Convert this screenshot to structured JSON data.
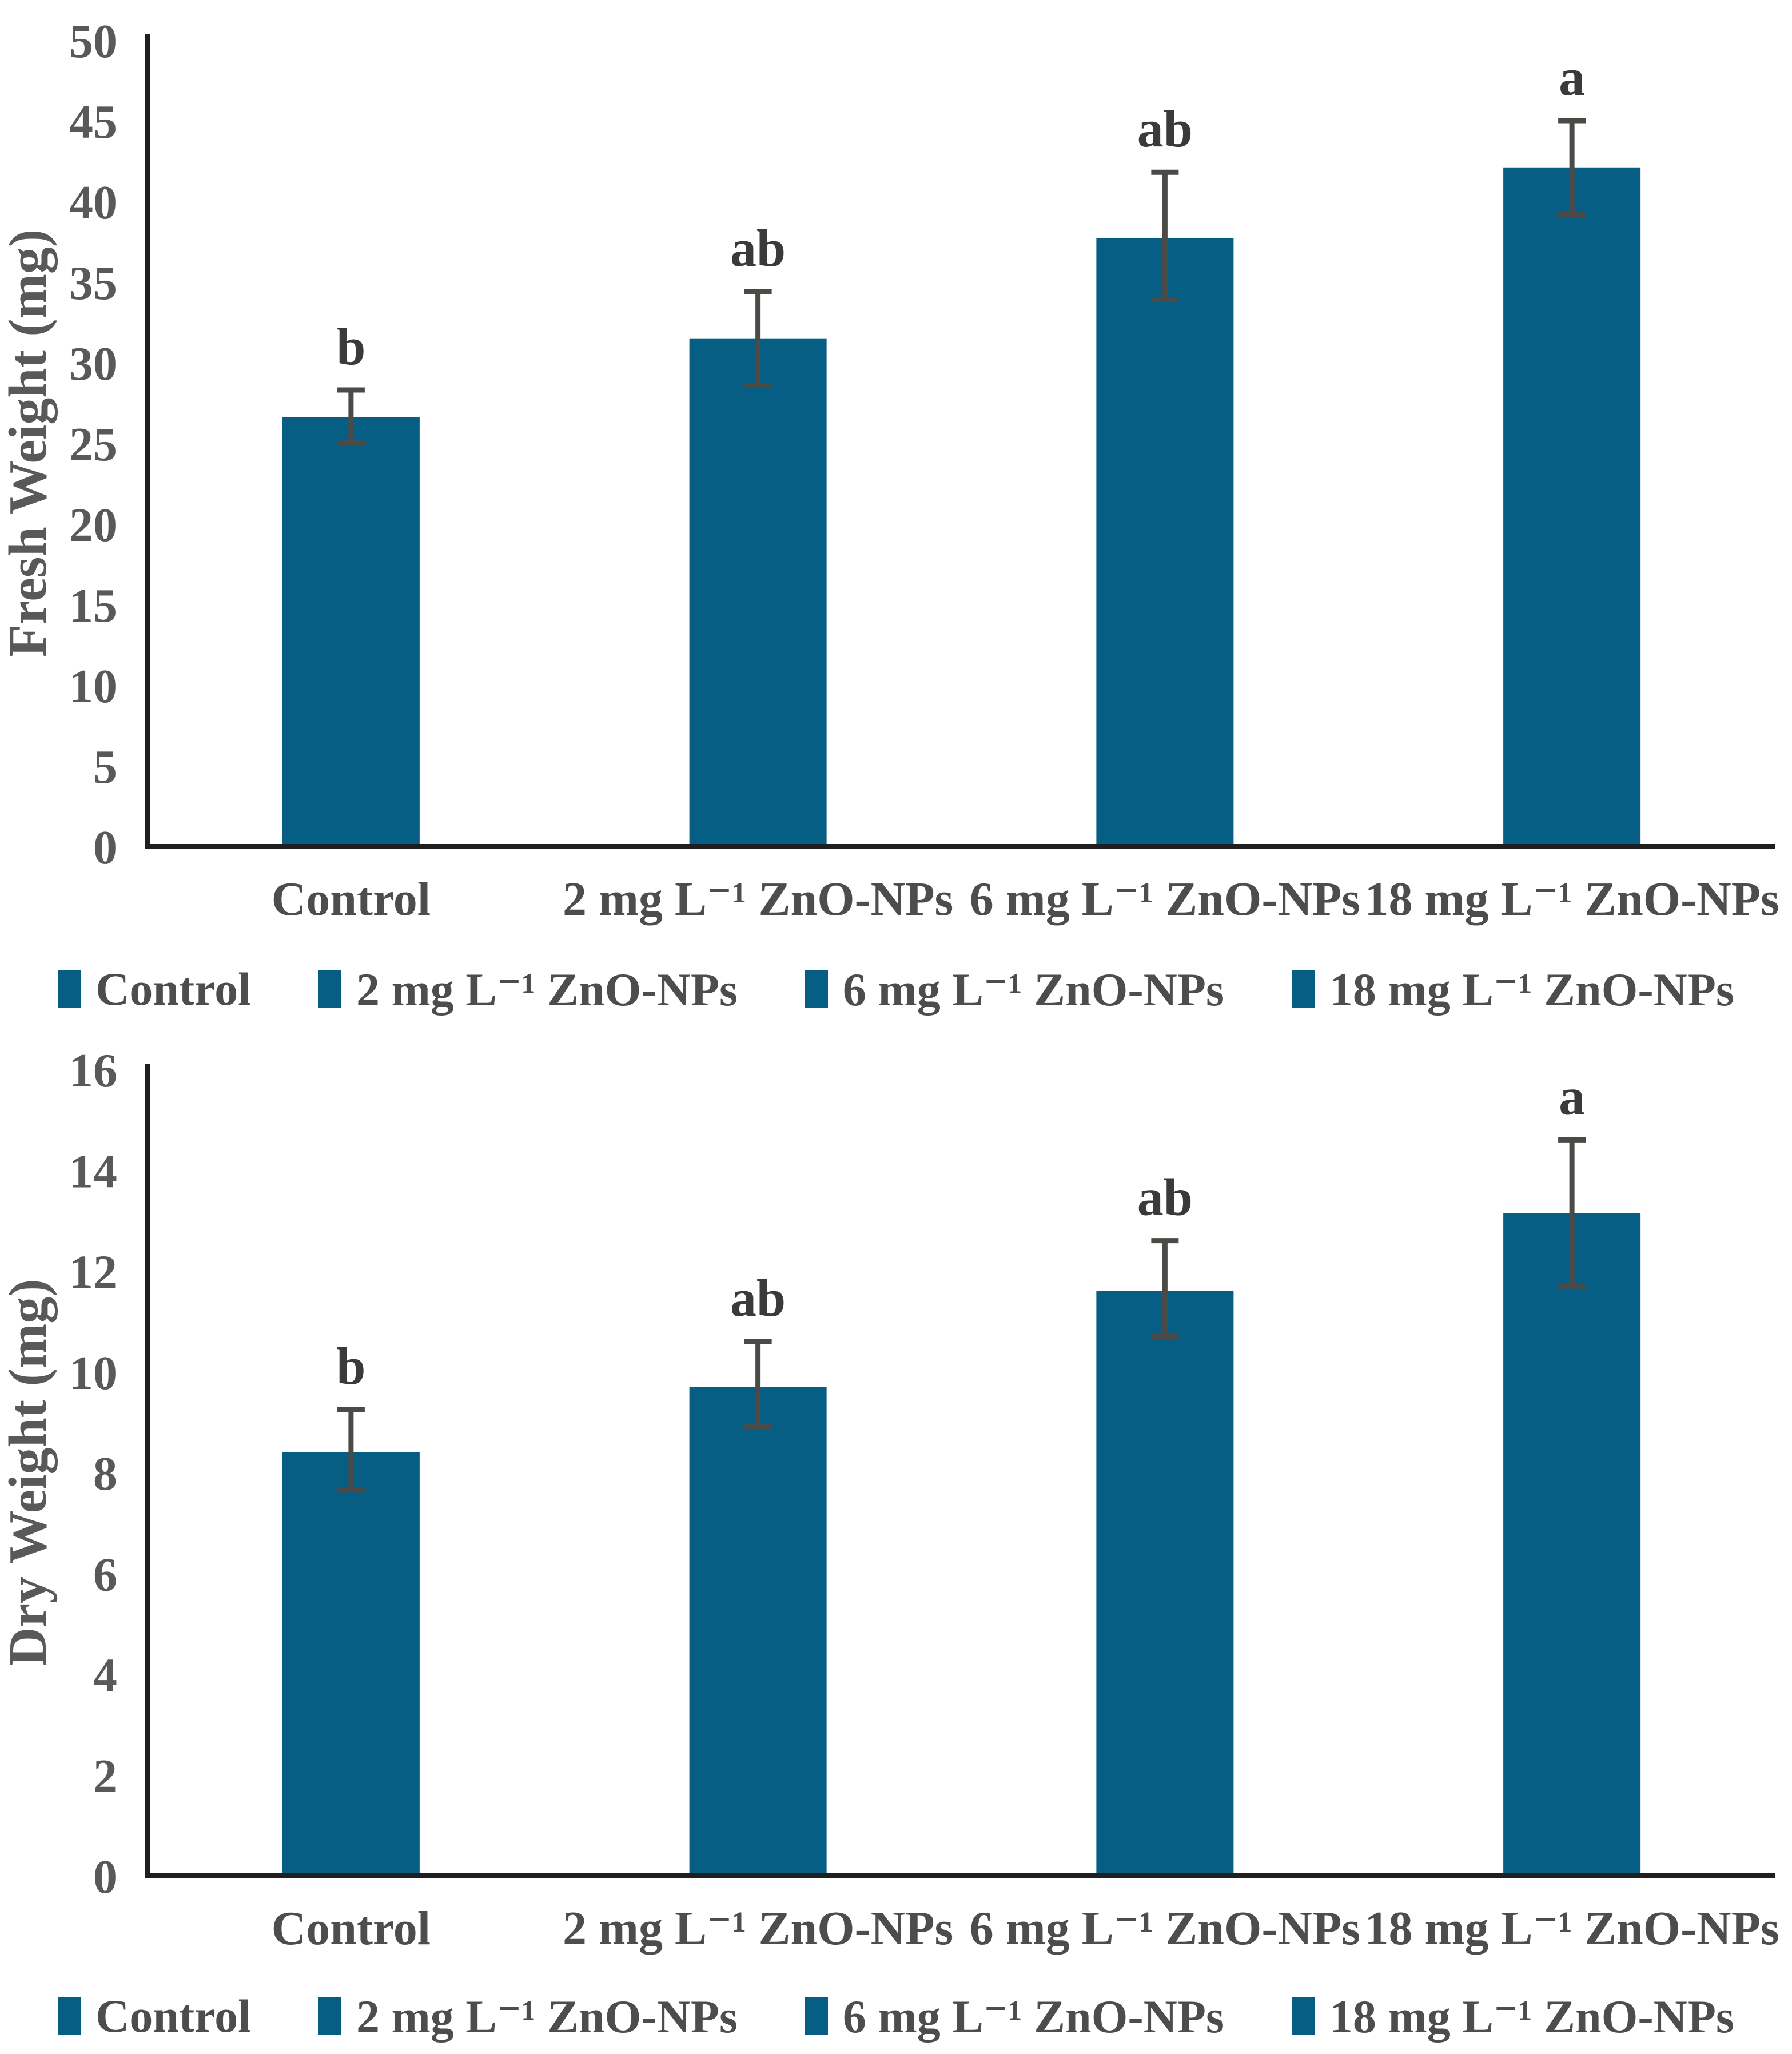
{
  "page": {
    "background": "#ffffff"
  },
  "chart_data": [
    {
      "type": "bar",
      "title": "",
      "xlabel": "",
      "ylabel": "Fresh Weight (mg)",
      "ylim": [
        0,
        50
      ],
      "yticks": [
        0,
        5,
        10,
        15,
        20,
        25,
        30,
        35,
        40,
        45,
        50
      ],
      "grid": false,
      "legend_position": "bottom",
      "categories": [
        "Control",
        "2 mg L⁻¹ ZnO-NPs",
        "6 mg L⁻¹ ZnO-NPs",
        "18 mg L⁻¹ ZnO-NPs"
      ],
      "values": [
        26.6,
        31.5,
        37.7,
        42.1
      ],
      "error_low": [
        25.0,
        28.6,
        33.9,
        39.2
      ],
      "error_high": [
        28.3,
        34.4,
        41.8,
        45.0
      ],
      "sig_letters": [
        "b",
        "ab",
        "ab",
        "a"
      ],
      "legend": [
        "Control",
        "2 mg L⁻¹ ZnO-NPs",
        "6 mg L⁻¹ ZnO-NPs",
        "18 mg L⁻¹ ZnO-NPs"
      ],
      "bar_color": "#075e85",
      "error_color": "#4c4a47",
      "letter_color": "#3a3a3a",
      "tick_color": "#595959",
      "category_color": "#4d4d4d",
      "axis_color": "#1f1f1f"
    },
    {
      "type": "bar",
      "title": "",
      "xlabel": "",
      "ylabel": "Dry Weight (mg)",
      "ylim": [
        0,
        16
      ],
      "yticks": [
        0,
        2,
        4,
        6,
        8,
        10,
        12,
        14,
        16
      ],
      "grid": false,
      "legend_position": "bottom",
      "categories": [
        "Control",
        "2 mg L⁻¹ ZnO-NPs",
        "6 mg L⁻¹ ZnO-NPs",
        "18 mg L⁻¹ ZnO-NPs"
      ],
      "values": [
        8.4,
        9.7,
        11.6,
        13.15
      ],
      "error_low": [
        7.65,
        8.9,
        10.7,
        11.7
      ],
      "error_high": [
        9.25,
        10.6,
        12.6,
        14.6
      ],
      "sig_letters": [
        "b",
        "ab",
        "ab",
        "a"
      ],
      "legend": [
        "Control",
        "2 mg L⁻¹ ZnO-NPs",
        "6 mg L⁻¹ ZnO-NPs",
        "18 mg L⁻¹ ZnO-NPs"
      ],
      "bar_color": "#075e85",
      "error_color": "#4c4a47",
      "letter_color": "#3a3a3a",
      "tick_color": "#595959",
      "category_color": "#4d4d4d",
      "axis_color": "#1f1f1f"
    }
  ]
}
